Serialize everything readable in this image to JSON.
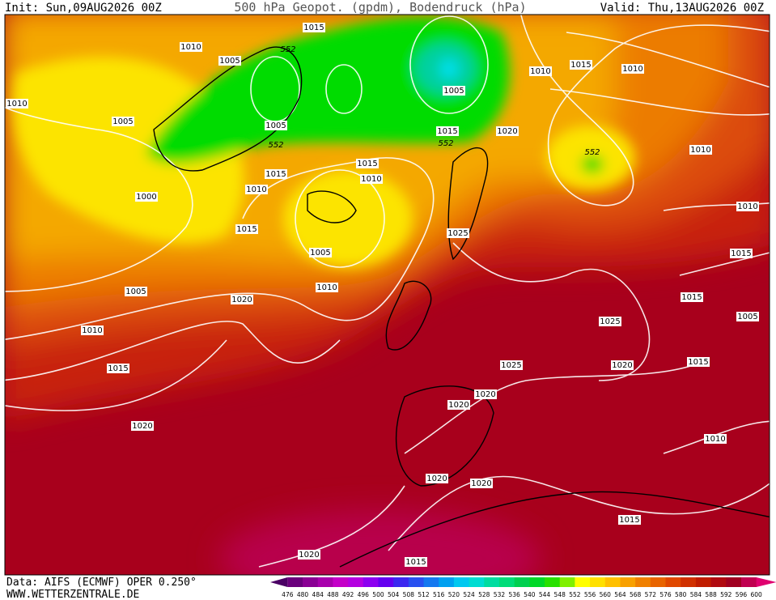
{
  "header": {
    "init": "Init: Sun,09AUG2026 00Z",
    "title": "500 hPa Geopot. (gpdm), Bodendruck (hPa)",
    "valid": "Valid: Thu,13AUG2026 00Z"
  },
  "footer": {
    "source": "Data: AIFS (ECMWF) OPER 0.250°",
    "website": "WWW.WETTERZENTRALE.DE"
  },
  "isobar_labels": [
    1015,
    1010,
    1005,
    552,
    1010,
    1005,
    1005,
    1005,
    1015,
    1010,
    1010,
    1015,
    1020,
    552,
    552,
    552,
    1010,
    1015,
    1015,
    1010,
    1010,
    1000,
    1015,
    1025,
    1010,
    1005,
    1015,
    1010,
    1005,
    1020,
    1015,
    1010,
    1005,
    1025,
    1015,
    1025,
    1020,
    1015,
    1020,
    1020,
    1020,
    1010,
    1020,
    1020,
    1015,
    1020,
    1015
  ],
  "scale": {
    "labels": [
      476,
      480,
      484,
      488,
      492,
      496,
      500,
      504,
      508,
      512,
      516,
      520,
      524,
      528,
      532,
      536,
      540,
      544,
      548,
      552,
      556,
      560,
      564,
      568,
      572,
      576,
      580,
      584,
      588,
      592,
      596,
      600
    ],
    "colors": [
      "#4a0064",
      "#6a007c",
      "#8a0094",
      "#a800ac",
      "#c400c8",
      "#b400e0",
      "#8c00f0",
      "#6400f0",
      "#3c28f0",
      "#2850f0",
      "#1478f0",
      "#00a0f0",
      "#00c8f0",
      "#00dcd2",
      "#00dca0",
      "#00dc78",
      "#00d050",
      "#00d828",
      "#28e000",
      "#80f000",
      "#ffff00",
      "#ffe000",
      "#ffc000",
      "#f8a000",
      "#f08000",
      "#e86400",
      "#e04800",
      "#d03000",
      "#c01c00",
      "#b00a10",
      "#a00020",
      "#c00050",
      "#e00070"
    ]
  }
}
